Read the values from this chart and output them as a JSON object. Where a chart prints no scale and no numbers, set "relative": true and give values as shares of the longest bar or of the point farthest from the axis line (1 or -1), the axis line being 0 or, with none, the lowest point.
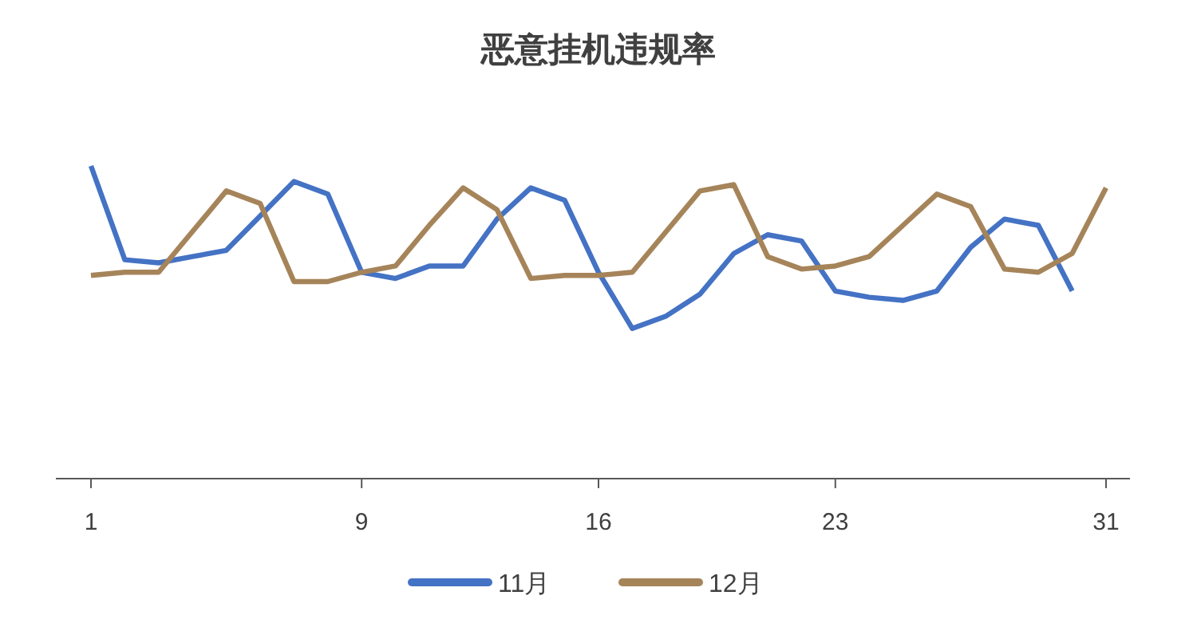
{
  "chart_data": {
    "type": "line",
    "title": "恶意挂机违规率",
    "relative": true,
    "legend": "bottom",
    "tick_labels": "x",
    "marker": "none",
    "line_style": "solid",
    "categories": [
      "1",
      null,
      null,
      null,
      null,
      null,
      null,
      null,
      "9",
      null,
      null,
      null,
      null,
      null,
      null,
      "16",
      null,
      null,
      null,
      null,
      null,
      null,
      "23",
      null,
      null,
      null,
      null,
      null,
      null,
      null,
      "31"
    ],
    "series": [
      {
        "name": "11月",
        "color": "#4472c4",
        "values": [
          1.0,
          0.7,
          0.69,
          0.71,
          0.73,
          0.84,
          0.95,
          0.91,
          0.66,
          0.64,
          0.68,
          0.68,
          0.83,
          0.93,
          0.89,
          0.66,
          0.48,
          0.52,
          0.59,
          0.72,
          0.78,
          0.76,
          0.6,
          0.58,
          0.57,
          0.6,
          0.74,
          0.83,
          0.81,
          0.6,
          null
        ]
      },
      {
        "name": "12月",
        "color": "#a6845a",
        "values": [
          0.65,
          0.66,
          0.66,
          0.79,
          0.92,
          0.88,
          0.63,
          0.63,
          0.66,
          0.68,
          0.81,
          0.93,
          0.86,
          0.64,
          0.65,
          0.65,
          0.66,
          0.79,
          0.92,
          0.94,
          0.71,
          0.67,
          0.68,
          0.71,
          0.81,
          0.91,
          0.87,
          0.67,
          0.66,
          0.72,
          0.93
        ]
      }
    ]
  }
}
